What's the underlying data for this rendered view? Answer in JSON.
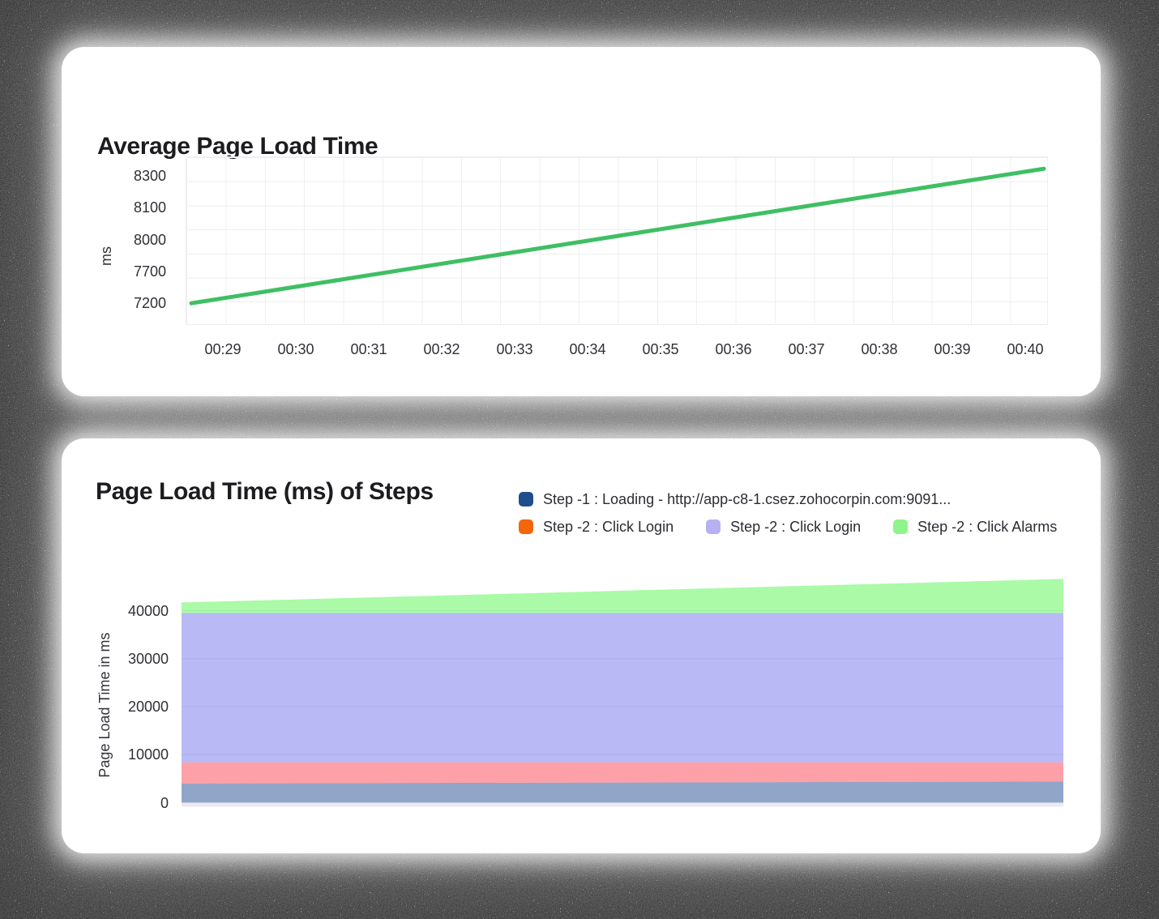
{
  "page": {
    "background_color": "#0e0e0e",
    "card_background": "#ffffff",
    "grid_color": "#efeef0"
  },
  "chart_data": [
    {
      "type": "line",
      "title": "Average Page Load Time",
      "ylabel": "ms",
      "x_tick_labels": [
        "00:29",
        "00:30",
        "00:31",
        "00:32",
        "00:33",
        "00:34",
        "00:35",
        "00:36",
        "00:37",
        "00:38",
        "00:39",
        "00:40"
      ],
      "y_tick_labels": [
        "8300",
        "8100",
        "8000",
        "7700",
        "7200"
      ],
      "grid": true,
      "legend": "none",
      "line_color": "#3fbf63",
      "start_value": 7210,
      "end_value": 8350,
      "values_at_ticks": [
        7310,
        7490,
        7670,
        7800,
        7910,
        8010,
        8040,
        8080,
        8130,
        8200,
        8280,
        8350
      ],
      "trend": "steady linear increase from ~7210 ms to ~8350 ms across the time window"
    },
    {
      "type": "area",
      "stacked": true,
      "title": "Page Load Time (ms) of Steps",
      "ylabel": "Page Load Time in ms",
      "y_tick_labels": [
        "40000",
        "30000",
        "20000",
        "10000",
        "0"
      ],
      "y_tick_values": [
        40000,
        30000,
        20000,
        10000,
        0
      ],
      "ylim": [
        0,
        47000
      ],
      "x_tick_labels": [],
      "x_axis_labels_visible": false,
      "legend_position": "top-right",
      "grid_color": "#e9e8ef",
      "axis_strip_color": "#eceaf1",
      "series": [
        {
          "name": "Step -1 : Loading - http://app-c8-1.csez.zohocorpin.com:9091...",
          "swatch_color": "#1f4e8c",
          "fill_color": "rgba(35,75,145,0.5)",
          "values_start_end": [
            4000,
            4400
          ]
        },
        {
          "name": "Step -2 : Click Login",
          "swatch_color": "#f4660a",
          "fill_color": "rgba(250,45,60,0.45)",
          "values_start_end": [
            4400,
            4000
          ]
        },
        {
          "name": "Step -2 : Click Login",
          "swatch_color": "#b5b1f2",
          "fill_color": "rgba(115,115,235,0.5)",
          "values_start_end": [
            31100,
            31100
          ]
        },
        {
          "name": "Step -2 : Click  Alarms",
          "swatch_color": "#8df58b",
          "fill_color": "rgba(85,245,81,0.5)",
          "values_start_end": [
            2200,
            7100
          ]
        }
      ],
      "cumulative_tops_start_end": [
        [
          4000,
          4400
        ],
        [
          8400,
          8400
        ],
        [
          39500,
          39500
        ],
        [
          41700,
          46600
        ]
      ]
    }
  ]
}
